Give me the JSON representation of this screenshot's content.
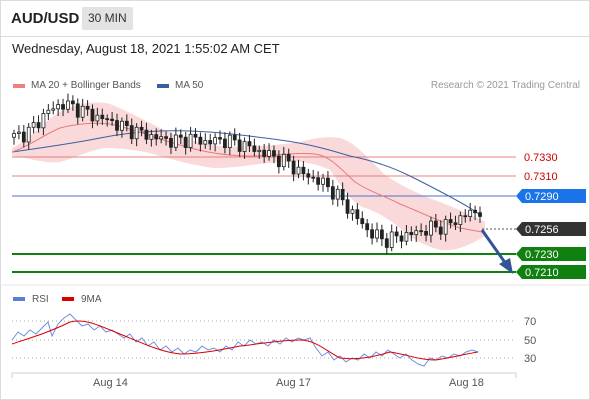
{
  "header": {
    "pair": "AUD/USD",
    "timeframe": "30 MIN"
  },
  "datetime": "Wednesday, August 18, 2021 1:55:02 AM CET",
  "legend": {
    "ma20": {
      "label": "MA 20 + Bollinger Bands",
      "color": "#f08080"
    },
    "ma50": {
      "label": "MA 50",
      "color": "#3a5fa0"
    }
  },
  "credit": "Research © 2021 Trading Central",
  "levels": {
    "r2": {
      "label": "0.7330",
      "color": "#cc0000"
    },
    "r1": {
      "label": "0.7310",
      "color": "#cc0000"
    },
    "pivot": {
      "label": "0.7290",
      "color": "#1a73e8"
    },
    "last": {
      "label": "0.7256",
      "color": "#333333"
    },
    "s1": {
      "label": "0.7230",
      "color": "#108010"
    },
    "s2": {
      "label": "0.7210",
      "color": "#108010"
    }
  },
  "rsi_legend": {
    "rsi": {
      "label": "RSI",
      "color": "#5b7fd6"
    },
    "ma": {
      "label": "9MA",
      "color": "#dd0000"
    }
  },
  "rsi_ticks": [
    "70",
    "50",
    "30"
  ],
  "x_labels": [
    "Aug 14",
    "Aug 17",
    "Aug 18"
  ],
  "chart_data": {
    "type": "candlestick",
    "price_axis": [
      0.72,
      0.7345
    ],
    "levels": [
      0.733,
      0.731,
      0.729,
      0.7256,
      0.723,
      0.721
    ],
    "approx_close": [
      0.7315,
      0.732,
      0.7335,
      0.7342,
      0.7338,
      0.7332,
      0.7328,
      0.7322,
      0.7318,
      0.7314,
      0.7312,
      0.7314,
      0.7311,
      0.7313,
      0.731,
      0.7305,
      0.73,
      0.7295,
      0.7285,
      0.728,
      0.727,
      0.7255,
      0.724,
      0.7232,
      0.7235,
      0.7238,
      0.7242,
      0.7244,
      0.7252,
      0.7256
    ],
    "rsi_axis": [
      20,
      80
    ],
    "rsi_levels": [
      70,
      50,
      30
    ]
  }
}
